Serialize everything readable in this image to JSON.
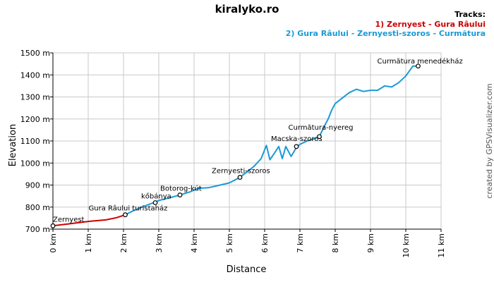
{
  "title": "kiralyko.ro",
  "credit": "created by GPSVisualizer.com",
  "legend": {
    "heading": "Tracks:",
    "placement": "top-right",
    "items": [
      {
        "label": "1) Zernyest - Gura Râului",
        "color": "#cc0000"
      },
      {
        "label": "2) Gura Râului - Zernyesti-szoros - Curmătura",
        "color": "#1a9ad6"
      }
    ]
  },
  "chart_data": {
    "type": "line",
    "title": "kiralyko.ro",
    "xlabel": "Distance",
    "ylabel": "Elevation",
    "xlim": [
      0,
      11
    ],
    "ylim": [
      700,
      1500
    ],
    "grid": true,
    "x_ticks": [
      "0 km",
      "1 km",
      "2 km",
      "3 km",
      "4 km",
      "5 km",
      "6 km",
      "7 km",
      "8 km",
      "9 km",
      "10 km",
      "11 km"
    ],
    "y_ticks": [
      "700 m",
      "800 m",
      "900 m",
      "1000 m",
      "1100 m",
      "1200 m",
      "1300 m",
      "1400 m",
      "1500 m"
    ],
    "series": [
      {
        "name": "1) Zernyest - Gura Râului",
        "color": "#cc0000",
        "x": [
          0,
          0.5,
          1.0,
          1.5,
          1.8,
          2.05
        ],
        "y": [
          715,
          725,
          735,
          742,
          752,
          765
        ]
      },
      {
        "name": "2) Gura Râului - Zernyesti-szoros - Curmătura",
        "color": "#1a9ad6",
        "x": [
          2.05,
          2.3,
          2.6,
          2.85,
          3.0,
          3.3,
          3.6,
          3.9,
          4.1,
          4.4,
          4.6,
          5.0,
          5.3,
          5.5,
          5.7,
          5.9,
          6.05,
          6.15,
          6.3,
          6.4,
          6.5,
          6.6,
          6.75,
          6.9,
          7.0,
          7.2,
          7.4,
          7.55,
          7.7,
          7.8,
          7.9,
          8.0,
          8.2,
          8.4,
          8.6,
          8.8,
          9.0,
          9.2,
          9.4,
          9.6,
          9.8,
          10.0,
          10.2,
          10.35
        ],
        "y": [
          765,
          785,
          805,
          820,
          830,
          842,
          855,
          870,
          885,
          888,
          895,
          910,
          935,
          960,
          985,
          1020,
          1080,
          1015,
          1050,
          1075,
          1020,
          1075,
          1030,
          1070,
          1085,
          1100,
          1110,
          1120,
          1170,
          1200,
          1240,
          1270,
          1295,
          1320,
          1335,
          1325,
          1330,
          1330,
          1350,
          1345,
          1365,
          1395,
          1440,
          1440
        ]
      }
    ],
    "annotations": [
      {
        "label": "Zernyest",
        "x": 0,
        "y": 715
      },
      {
        "label": "Gura Râului turistaház",
        "x": 2.05,
        "y": 765
      },
      {
        "label": "kőbánya",
        "x": 2.9,
        "y": 820
      },
      {
        "label": "Botorog-kút",
        "x": 3.6,
        "y": 855
      },
      {
        "label": "Zernyesti-szoros",
        "x": 5.3,
        "y": 935
      },
      {
        "label": "Macska-szoros",
        "x": 6.9,
        "y": 1075
      },
      {
        "label": "Curmătura-nyereg",
        "x": 7.55,
        "y": 1120
      },
      {
        "label": "Curmătura menedékház",
        "x": 10.35,
        "y": 1440
      }
    ]
  }
}
